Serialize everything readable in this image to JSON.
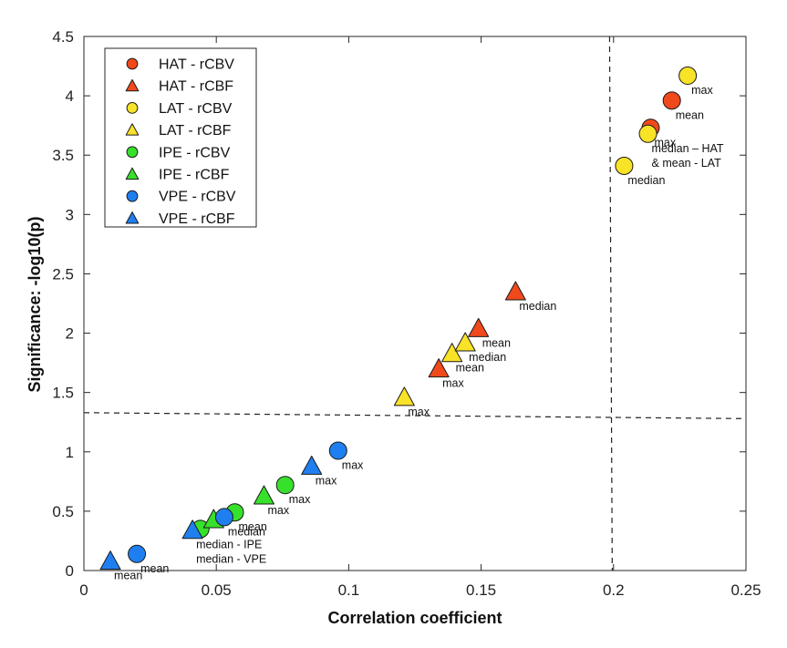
{
  "chart_data": {
    "type": "scatter",
    "xlabel": "Correlation coefficient",
    "ylabel": "Significance: -log10(p)",
    "xlim": [
      0,
      0.25
    ],
    "ylim": [
      0,
      4.5
    ],
    "xticks": [
      0,
      0.05,
      0.1,
      0.15,
      0.2,
      0.25
    ],
    "xtick_labels": [
      "0",
      "0.05",
      "0.1",
      "0.15",
      "0.2",
      "0.25"
    ],
    "yticks": [
      0,
      0.5,
      1,
      1.5,
      2,
      2.5,
      3,
      3.5,
      4,
      4.5
    ],
    "ytick_labels": [
      "0",
      "0.5",
      "1",
      "1.5",
      "2",
      "2.5",
      "3",
      "3.5",
      "4",
      "4.5"
    ],
    "grid": false,
    "legend_position": "top-left",
    "colors": {
      "HAT": "#f0491c",
      "LAT": "#f9e327",
      "IPE": "#37e12b",
      "VPE": "#1f7ff0"
    },
    "reference_lines": [
      {
        "name": "significance-threshold",
        "orientation": "horizontal",
        "points": [
          [
            0,
            1.33
          ],
          [
            0.25,
            1.28
          ]
        ]
      },
      {
        "name": "correlation-threshold",
        "orientation": "vertical",
        "points": [
          [
            0.1985,
            4.5
          ],
          [
            0.1995,
            0
          ]
        ]
      }
    ],
    "series": [
      {
        "name": "HAT - rCBV",
        "group": "HAT",
        "marker": "circle",
        "color": "#f0491c",
        "points": [
          {
            "x": 0.214,
            "y": 3.73,
            "label": "max"
          },
          {
            "x": 0.222,
            "y": 3.96,
            "label": "mean"
          }
        ]
      },
      {
        "name": "HAT - rCBF",
        "group": "HAT",
        "marker": "triangle",
        "color": "#f0491c",
        "points": [
          {
            "x": 0.134,
            "y": 1.7,
            "label": "max"
          },
          {
            "x": 0.149,
            "y": 2.04,
            "label": "mean"
          },
          {
            "x": 0.163,
            "y": 2.35,
            "label": "median"
          }
        ]
      },
      {
        "name": "LAT - rCBV",
        "group": "LAT",
        "marker": "circle",
        "color": "#f9e327",
        "points": [
          {
            "x": 0.204,
            "y": 3.41,
            "label": "median"
          },
          {
            "x": 0.213,
            "y": 3.68,
            "label": "median – HAT\n& mean - LAT"
          },
          {
            "x": 0.228,
            "y": 4.17,
            "label": "max"
          }
        ]
      },
      {
        "name": "LAT - rCBF",
        "group": "LAT",
        "marker": "triangle",
        "color": "#f9e327",
        "points": [
          {
            "x": 0.121,
            "y": 1.46,
            "label": "max"
          },
          {
            "x": 0.139,
            "y": 1.83,
            "label": "mean"
          },
          {
            "x": 0.144,
            "y": 1.92,
            "label": "median"
          }
        ]
      },
      {
        "name": "IPE - rCBV",
        "group": "IPE",
        "marker": "circle",
        "color": "#37e12b",
        "points": [
          {
            "x": 0.044,
            "y": 0.35,
            "label": ""
          },
          {
            "x": 0.057,
            "y": 0.49,
            "label": "mean"
          },
          {
            "x": 0.076,
            "y": 0.72,
            "label": "max"
          }
        ]
      },
      {
        "name": "IPE - rCBF",
        "group": "IPE",
        "marker": "triangle",
        "color": "#37e12b",
        "points": [
          {
            "x": 0.049,
            "y": 0.43,
            "label": ""
          },
          {
            "x": 0.068,
            "y": 0.63,
            "label": "max"
          }
        ]
      },
      {
        "name": "VPE - rCBV",
        "group": "VPE",
        "marker": "circle",
        "color": "#1f7ff0",
        "points": [
          {
            "x": 0.02,
            "y": 0.14,
            "label": "mean"
          },
          {
            "x": 0.053,
            "y": 0.45,
            "label": "median"
          },
          {
            "x": 0.096,
            "y": 1.01,
            "label": "max"
          }
        ]
      },
      {
        "name": "VPE - rCBF",
        "group": "VPE",
        "marker": "triangle",
        "color": "#1f7ff0",
        "points": [
          {
            "x": 0.01,
            "y": 0.08,
            "label": "mean"
          },
          {
            "x": 0.041,
            "y": 0.34,
            "label": "median - IPE\nmedian - VPE"
          },
          {
            "x": 0.086,
            "y": 0.88,
            "label": "max"
          }
        ]
      }
    ]
  }
}
